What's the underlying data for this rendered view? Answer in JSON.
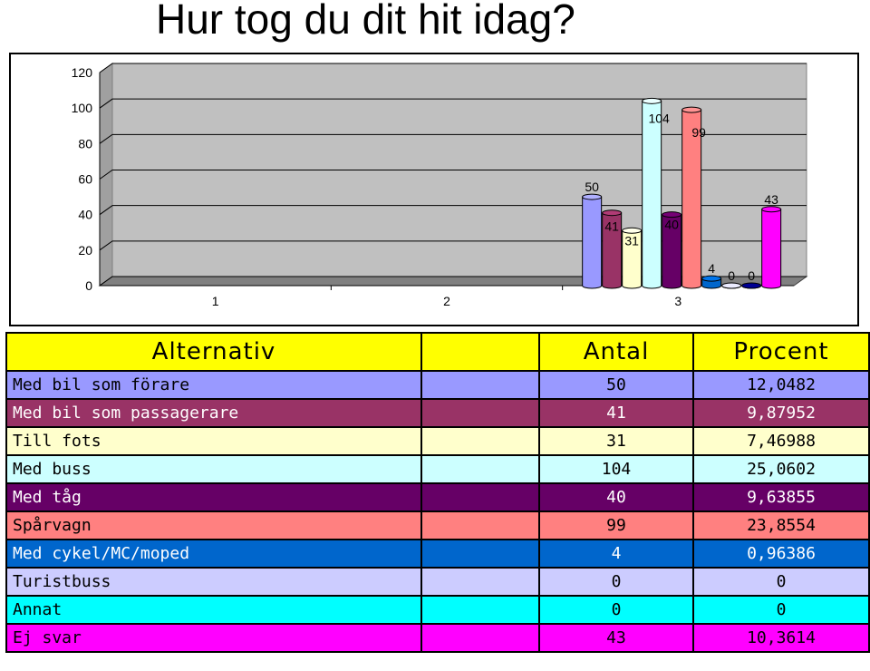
{
  "title": "Hur tog du dit hit idag?",
  "chart_data": {
    "type": "bar",
    "categories": [
      "1",
      "2",
      "3"
    ],
    "ylim": [
      0,
      120
    ],
    "yticks": [
      0,
      20,
      40,
      60,
      80,
      100,
      120
    ],
    "grid": true,
    "series": [
      {
        "name": "Med bil som förare",
        "category": "3",
        "value": 50,
        "label": "50",
        "color": "#9999ff"
      },
      {
        "name": "Med bil som passagerare",
        "category": "3",
        "value": 41,
        "label": "41",
        "color": "#993366"
      },
      {
        "name": "Till fots",
        "category": "3",
        "value": 31,
        "label": "31",
        "color": "#ffffcc"
      },
      {
        "name": "Med buss",
        "category": "3",
        "value": 104,
        "label": "104",
        "color": "#ccffff"
      },
      {
        "name": "Med tåg",
        "category": "3",
        "value": 40,
        "label": "40",
        "color": "#660066"
      },
      {
        "name": "Spårvagn",
        "category": "3",
        "value": 99,
        "label": "99",
        "color": "#ff8080"
      },
      {
        "name": "Med cykel/MC/moped",
        "category": "3",
        "value": 4,
        "label": "4",
        "color": "#0066cc"
      },
      {
        "name": "Turistbuss",
        "category": "3",
        "value": 0,
        "label": "0",
        "color": "#ccccff"
      },
      {
        "name": "Annat",
        "category": "3",
        "value": 0,
        "label": "0",
        "color": "#000080"
      },
      {
        "name": "Ej svar",
        "category": "3",
        "value": 43,
        "label": "43",
        "color": "#ff00ff"
      }
    ]
  },
  "table": {
    "headers": [
      "Alternativ",
      "",
      "Antal",
      "Procent"
    ],
    "rows": [
      {
        "alternativ": "Med bil som förare",
        "antal": "50",
        "procent": "12,0482",
        "bg": "#9999ff",
        "fg": "#000000"
      },
      {
        "alternativ": "Med bil som passagerare",
        "antal": "41",
        "procent": "9,87952",
        "bg": "#993366",
        "fg": "#ffffff"
      },
      {
        "alternativ": "Till fots",
        "antal": "31",
        "procent": "7,46988",
        "bg": "#ffffcc",
        "fg": "#000000"
      },
      {
        "alternativ": "Med buss",
        "antal": "104",
        "procent": "25,0602",
        "bg": "#ccffff",
        "fg": "#000000"
      },
      {
        "alternativ": "Med tåg",
        "antal": "40",
        "procent": "9,63855",
        "bg": "#660066",
        "fg": "#ffffff"
      },
      {
        "alternativ": "Spårvagn",
        "antal": "99",
        "procent": "23,8554",
        "bg": "#ff8080",
        "fg": "#000000"
      },
      {
        "alternativ": "Med cykel/MC/moped",
        "antal": "4",
        "procent": "0,96386",
        "bg": "#0066cc",
        "fg": "#ffffff"
      },
      {
        "alternativ": "Turistbuss",
        "antal": "0",
        "procent": "0",
        "bg": "#ccccff",
        "fg": "#000000"
      },
      {
        "alternativ": "Annat",
        "antal": "0",
        "procent": "0",
        "bg": "#00ffff",
        "fg": "#000000"
      },
      {
        "alternativ": "Ej svar",
        "antal": "43",
        "procent": "10,3614",
        "bg": "#ff00ff",
        "fg": "#000000"
      }
    ]
  }
}
